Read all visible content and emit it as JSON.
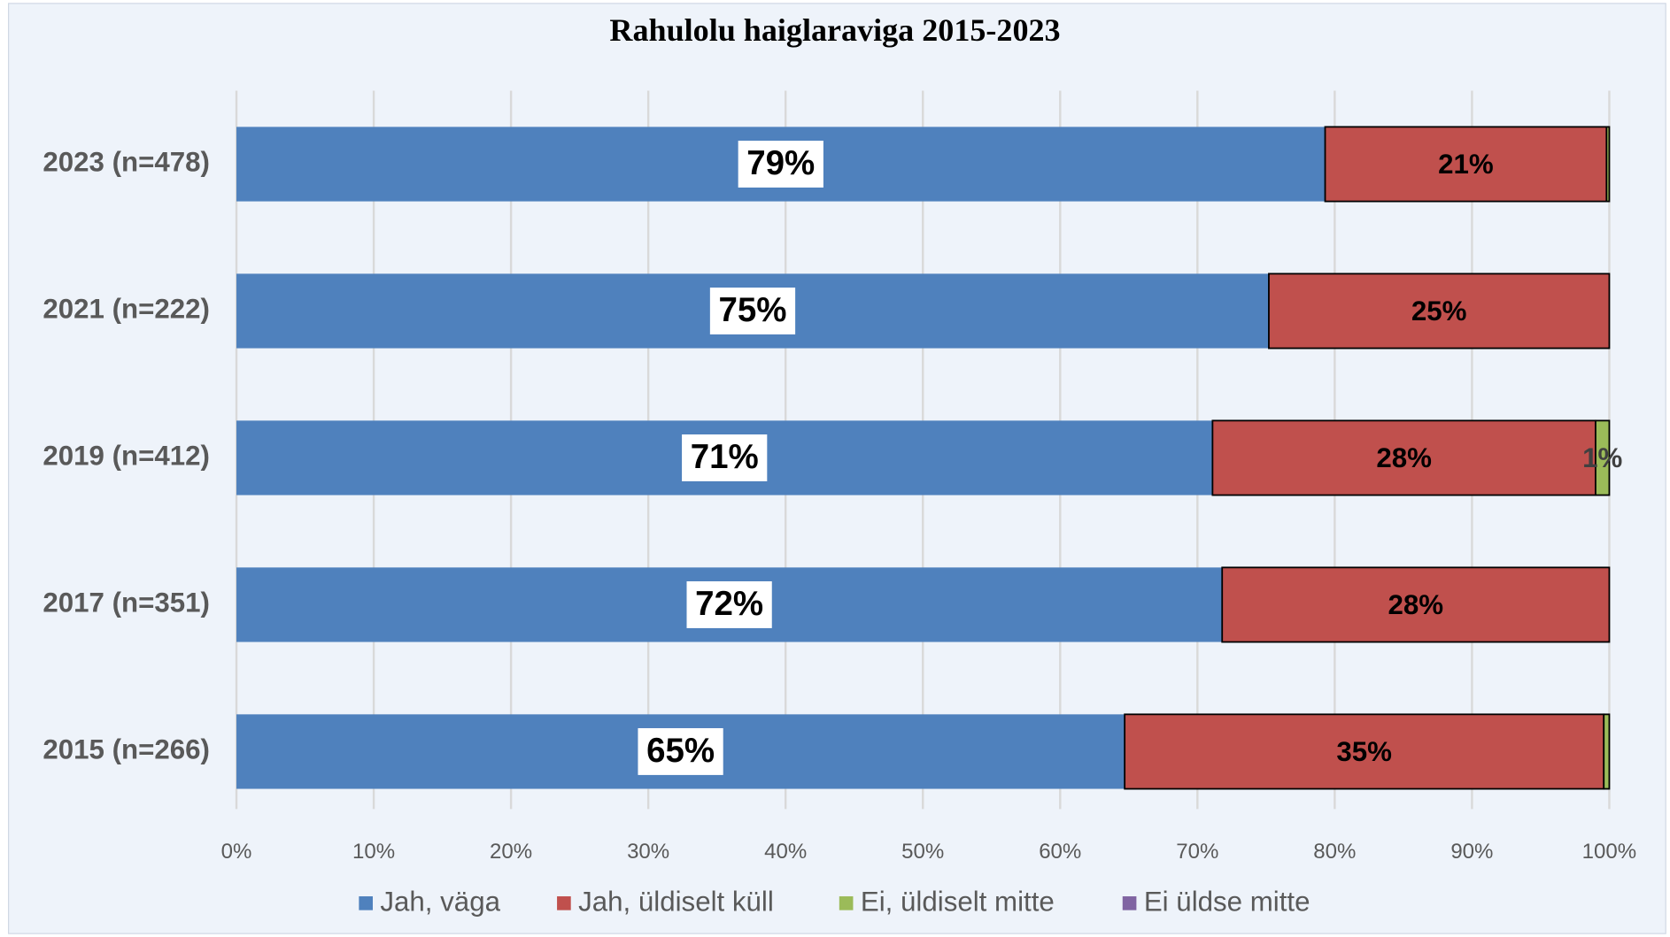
{
  "chart_data": {
    "type": "stacked-bar-horizontal",
    "title": "Rahulolu haiglaraviga 2015-2023",
    "categories": [
      "2023 (n=478)",
      "2021 (n=222)",
      "2019 (n=412)",
      "2017 (n=351)",
      "2015 (n=266)"
    ],
    "series": [
      {
        "name": "Jah, väga",
        "color": "#4f81bd",
        "values": [
          79.3,
          75.2,
          71.1,
          71.8,
          64.7
        ],
        "value_labels": [
          "79%",
          "75%",
          "71%",
          "72%",
          "65%"
        ]
      },
      {
        "name": "Jah, üldiselt küll",
        "color": "#c0504d",
        "values": [
          20.5,
          24.8,
          27.9,
          28.2,
          34.9
        ],
        "value_labels": [
          "21%",
          "25%",
          "28%",
          "28%",
          "35%"
        ]
      },
      {
        "name": "Ei, üldiselt mitte",
        "color": "#9bbb59",
        "values": [
          0.2,
          0,
          1.0,
          0,
          0.4
        ],
        "value_labels": [
          null,
          null,
          "1%",
          null,
          null
        ]
      },
      {
        "name": "Ei üldse mitte",
        "color": "#8064a2",
        "values": [
          0,
          0,
          0,
          0,
          0
        ],
        "value_labels": [
          null,
          null,
          null,
          null,
          null
        ]
      }
    ],
    "xlim": [
      0,
      100
    ],
    "xticks": [
      {
        "value": 0,
        "label": "0%"
      },
      {
        "value": 10,
        "label": "10%"
      },
      {
        "value": 20,
        "label": "20%"
      },
      {
        "value": 30,
        "label": "30%"
      },
      {
        "value": 40,
        "label": "40%"
      },
      {
        "value": 50,
        "label": "50%"
      },
      {
        "value": 60,
        "label": "60%"
      },
      {
        "value": 70,
        "label": "70%"
      },
      {
        "value": 80,
        "label": "80%"
      },
      {
        "value": 90,
        "label": "90%"
      },
      {
        "value": 100,
        "label": "100%"
      }
    ],
    "grid": true,
    "legend": "bottom"
  }
}
